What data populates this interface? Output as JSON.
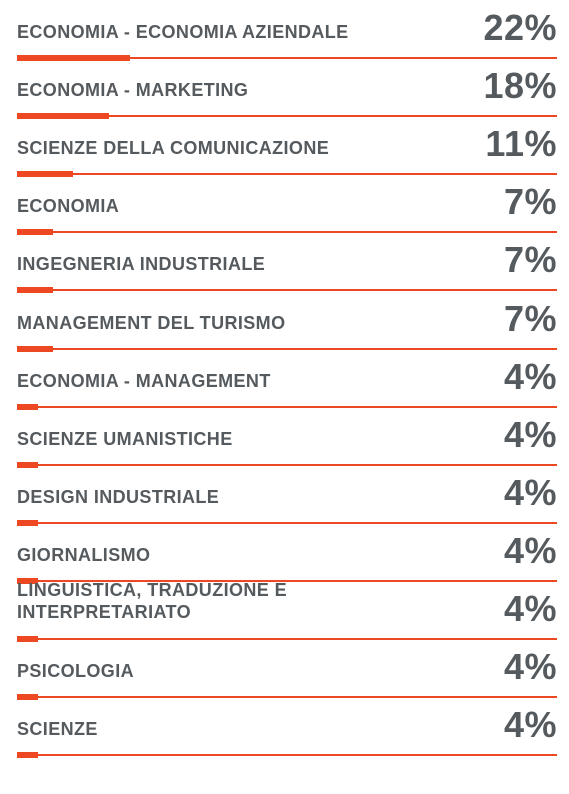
{
  "chart_data": {
    "type": "bar",
    "categories": [
      "ECONOMIA - ECONOMIA AZIENDALE",
      "ECONOMIA - MARKETING",
      "SCIENZE DELLA COMUNICAZIONE",
      "ECONOMIA",
      "INGEGNERIA INDUSTRIALE",
      "MANAGEMENT DEL TURISMO",
      "ECONOMIA - MANAGEMENT",
      "SCIENZE UMANISTICHE",
      "DESIGN INDUSTRIALE",
      "GIORNALISMO",
      "LINGUISTICA, TRADUZIONE E INTERPRETARIATO",
      "PSICOLOGIA",
      "SCIENZE"
    ],
    "values": [
      22,
      18,
      11,
      7,
      7,
      7,
      4,
      4,
      4,
      4,
      4,
      4,
      4
    ],
    "value_labels": [
      "22%",
      "18%",
      "11%",
      "7%",
      "7%",
      "7%",
      "4%",
      "4%",
      "4%",
      "4%",
      "4%",
      "4%",
      "4%"
    ],
    "unit": "%",
    "xlim": [
      0,
      100
    ],
    "colors": {
      "bar": "#ee4823",
      "text": "#555a5e"
    }
  }
}
